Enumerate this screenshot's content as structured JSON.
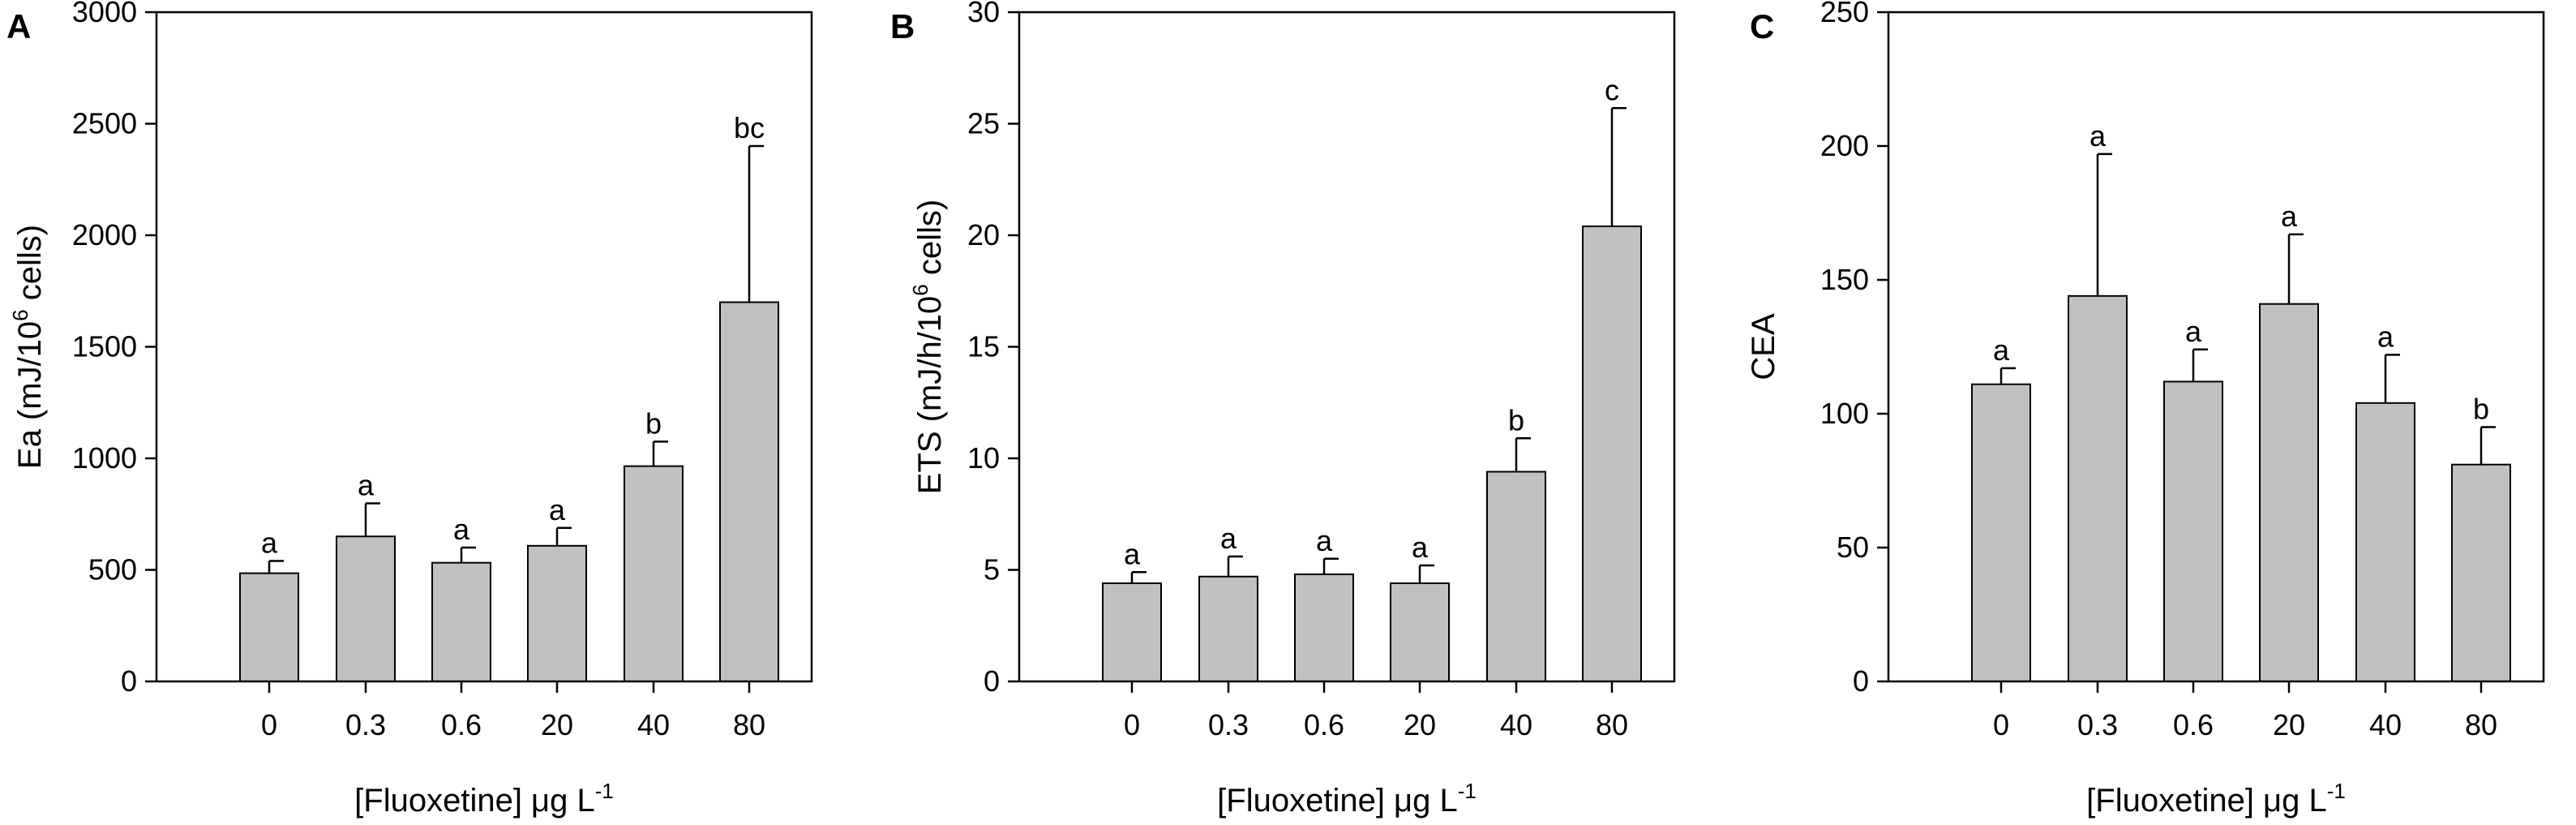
{
  "chart_data": [
    {
      "panel": "A",
      "type": "bar",
      "categories": [
        "0",
        "0.3",
        "0.6",
        "20",
        "40",
        "80"
      ],
      "values": [
        485,
        650,
        532,
        608,
        965,
        1700
      ],
      "errors": [
        55,
        148,
        68,
        80,
        110,
        700
      ],
      "sig_labels": [
        "a",
        "a",
        "a",
        "a",
        "b",
        "bc"
      ],
      "ylim": [
        0,
        3000
      ],
      "yticks": [
        "0",
        "500",
        "1000",
        "1500",
        "2000",
        "2500",
        "3000"
      ],
      "ylabel": {
        "pre": "Ea (mJ/10",
        "sup": "6",
        "post": " cells)"
      },
      "xlabel": {
        "pre": "[Fluoxetine] μg L",
        "sup": "-1",
        "post": ""
      },
      "bar_color": "#c0c0c0"
    },
    {
      "panel": "B",
      "type": "bar",
      "categories": [
        "0",
        "0.3",
        "0.6",
        "20",
        "40",
        "80"
      ],
      "values": [
        4.4,
        4.7,
        4.8,
        4.4,
        9.4,
        20.4
      ],
      "errors": [
        0.5,
        0.9,
        0.7,
        0.8,
        1.5,
        5.3
      ],
      "sig_labels": [
        "a",
        "a",
        "a",
        "a",
        "b",
        "c"
      ],
      "ylim": [
        0,
        30
      ],
      "yticks": [
        "0",
        "5",
        "10",
        "15",
        "20",
        "25",
        "30"
      ],
      "ylabel": {
        "pre": "ETS (mJ/h/10",
        "sup": "6",
        "post": " cells)"
      },
      "xlabel": {
        "pre": "[Fluoxetine] μg L",
        "sup": "-1",
        "post": ""
      },
      "bar_color": "#c0c0c0"
    },
    {
      "panel": "C",
      "type": "bar",
      "categories": [
        "0",
        "0.3",
        "0.6",
        "20",
        "40",
        "80"
      ],
      "values": [
        111,
        144,
        112,
        141,
        104,
        81
      ],
      "errors": [
        6,
        53,
        12,
        26,
        18,
        14
      ],
      "sig_labels": [
        "a",
        "a",
        "a",
        "a",
        "a",
        "b"
      ],
      "ylim": [
        0,
        250
      ],
      "yticks": [
        "0",
        "50",
        "100",
        "150",
        "200",
        "250"
      ],
      "ylabel": {
        "pre": "CEA",
        "sup": "",
        "post": ""
      },
      "xlabel": {
        "pre": "[Fluoxetine] μg L",
        "sup": "-1",
        "post": ""
      },
      "bar_color": "#c0c0c0"
    }
  ]
}
